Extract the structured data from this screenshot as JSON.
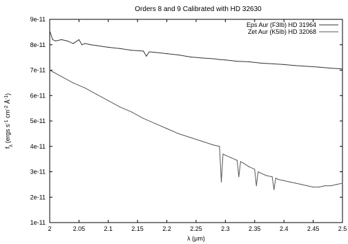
{
  "chart_data": {
    "type": "line",
    "title": "Orders 8 and 9 Calibrated with HD 32630",
    "xlabel": "λ (μm)",
    "ylabel": "f_λ (ergs s⁻¹ cm⁻² Å⁻¹)",
    "ylabel_parts": {
      "f": "f",
      "lambda_sub": "λ",
      "body": "(ergs s",
      "exp1": "-1",
      "cm": " cm",
      "exp2": "-2",
      "A": " Å",
      "exp3": "-1",
      "close": ")"
    },
    "xlim": [
      2.0,
      2.5
    ],
    "ylim": [
      1e-11,
      9e-11
    ],
    "x_ticks": [
      2,
      2.05,
      2.1,
      2.15,
      2.2,
      2.25,
      2.3,
      2.35,
      2.4,
      2.45,
      2.5
    ],
    "x_tick_labels": [
      "2",
      "2.05",
      "2.1",
      "2.15",
      "2.2",
      "2.25",
      "2.3",
      "2.35",
      "2.4",
      "2.45",
      "2.5"
    ],
    "y_ticks": [
      1e-11,
      2e-11,
      3e-11,
      4e-11,
      5e-11,
      6e-11,
      7e-11,
      8e-11,
      9e-11
    ],
    "y_tick_labels": [
      "1e-11",
      "2e-11",
      "3e-11",
      "4e-11",
      "5e-11",
      "6e-11",
      "7e-11",
      "8e-11",
      "9e-11"
    ],
    "grid": false,
    "legend_position": "top-right",
    "series": [
      {
        "name": "Eps Aur (F3Ib) HD 31964",
        "color": "#333333",
        "x": [
          2.0,
          2.005,
          2.01,
          2.02,
          2.03,
          2.04,
          2.05,
          2.055,
          2.06,
          2.07,
          2.08,
          2.09,
          2.1,
          2.12,
          2.14,
          2.16,
          2.165,
          2.17,
          2.18,
          2.2,
          2.22,
          2.24,
          2.26,
          2.28,
          2.29,
          2.3,
          2.32,
          2.34,
          2.36,
          2.38,
          2.4,
          2.42,
          2.44,
          2.46,
          2.48,
          2.5
        ],
        "y": [
          8.55e-11,
          8.2e-11,
          8.15e-11,
          8.2e-11,
          8.15e-11,
          8.05e-11,
          8.2e-11,
          8e-11,
          8.05e-11,
          8e-11,
          7.97e-11,
          7.93e-11,
          7.9e-11,
          7.85e-11,
          7.78e-11,
          7.75e-11,
          7.55e-11,
          7.72e-11,
          7.7e-11,
          7.65e-11,
          7.6e-11,
          7.52e-11,
          7.48e-11,
          7.45e-11,
          7.42e-11,
          7.4e-11,
          7.35e-11,
          7.33e-11,
          7.28e-11,
          7.25e-11,
          7.22e-11,
          7.18e-11,
          7.15e-11,
          7.12e-11,
          7.08e-11,
          7.05e-11
        ]
      },
      {
        "name": "Zet Aur (K5Ib) HD 32068",
        "color": "#555555",
        "x": [
          2.0,
          2.02,
          2.04,
          2.06,
          2.08,
          2.1,
          2.12,
          2.14,
          2.16,
          2.18,
          2.2,
          2.22,
          2.24,
          2.26,
          2.28,
          2.29,
          2.293,
          2.296,
          2.3,
          2.31,
          2.32,
          2.323,
          2.326,
          2.33,
          2.34,
          2.35,
          2.353,
          2.356,
          2.36,
          2.37,
          2.38,
          2.383,
          2.386,
          2.39,
          2.4,
          2.41,
          2.42,
          2.43,
          2.44,
          2.45,
          2.46,
          2.47,
          2.48,
          2.49,
          2.5
        ],
        "y": [
          7e-11,
          6.75e-11,
          6.5e-11,
          6.3e-11,
          6.05e-11,
          5.8e-11,
          5.55e-11,
          5.35e-11,
          5.1e-11,
          4.9e-11,
          4.7e-11,
          4.5e-11,
          4.35e-11,
          4.2e-11,
          4.05e-11,
          4e-11,
          2.6e-11,
          3.7e-11,
          3.65e-11,
          3.55e-11,
          3.45e-11,
          2.8e-11,
          3.4e-11,
          3.35e-11,
          3.2e-11,
          3.1e-11,
          2.45e-11,
          3e-11,
          2.95e-11,
          2.85e-11,
          2.8e-11,
          2.3e-11,
          2.75e-11,
          2.7e-11,
          2.65e-11,
          2.6e-11,
          2.55e-11,
          2.5e-11,
          2.45e-11,
          2.4e-11,
          2.4e-11,
          2.45e-11,
          2.45e-11,
          2.5e-11,
          2.55e-11
        ]
      }
    ]
  }
}
